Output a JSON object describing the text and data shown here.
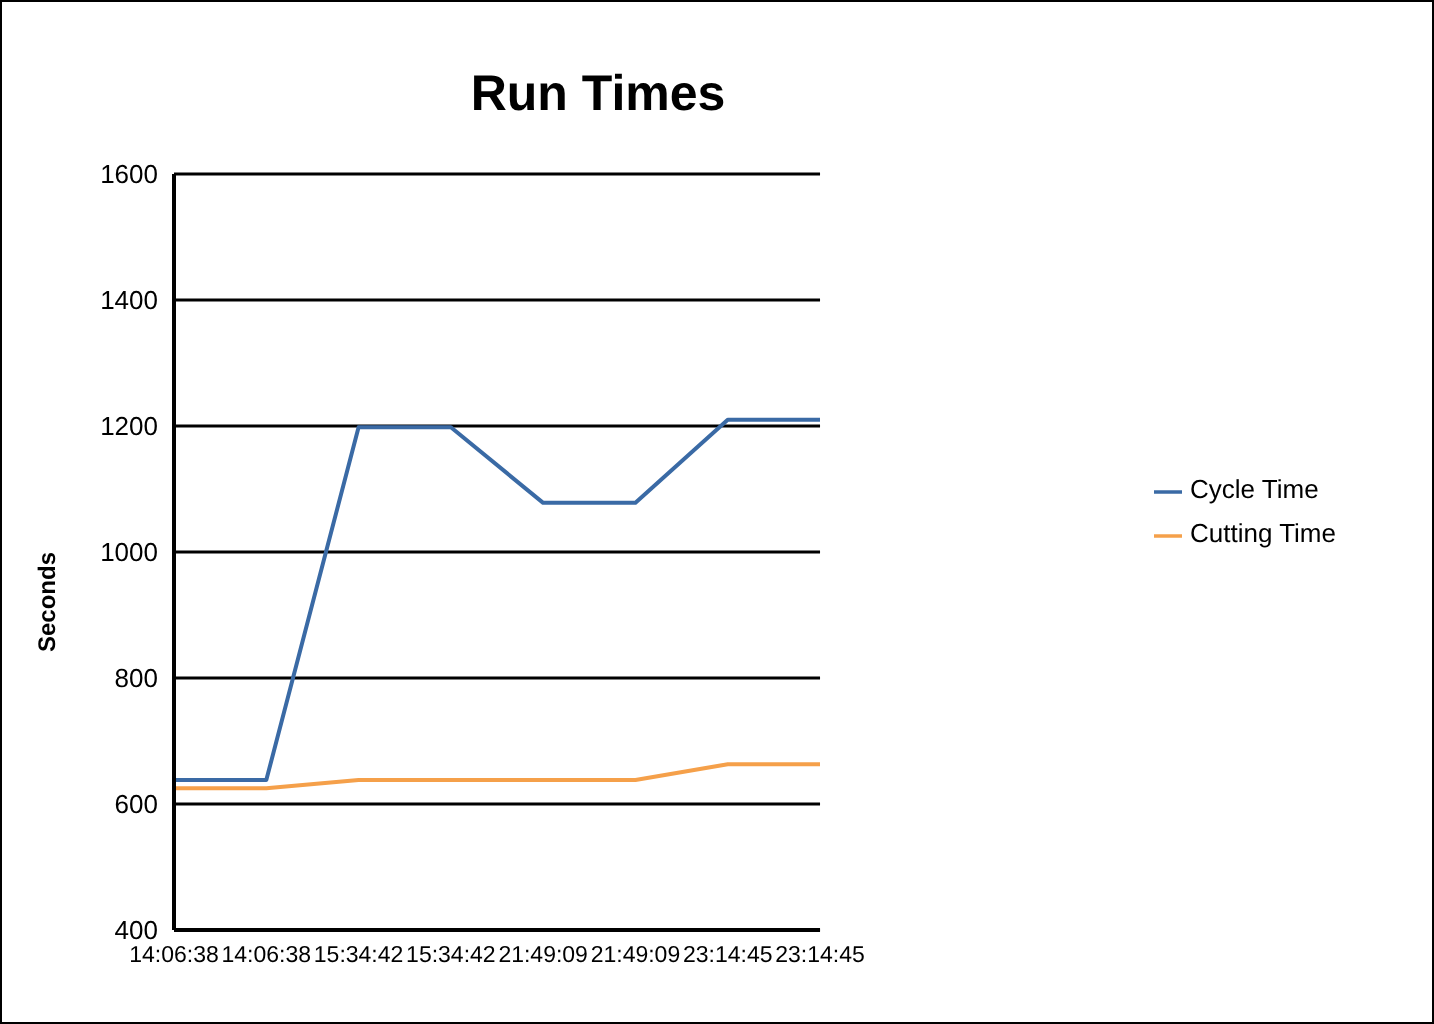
{
  "chart_data": {
    "type": "line",
    "title": "Run Times",
    "ylabel": "Seconds",
    "categories": [
      "14:06:38",
      "14:06:38",
      "15:34:42",
      "15:34:42",
      "21:49:09",
      "21:49:09",
      "23:14:45",
      "23:14:45"
    ],
    "series": [
      {
        "name": "Cycle Time",
        "color": "#3a6aa5",
        "values": [
          638,
          638,
          1198,
          1198,
          1078,
          1078,
          1210,
          1210
        ]
      },
      {
        "name": "Cutting Time",
        "color": "#f5a04a",
        "values": [
          625,
          625,
          638,
          638,
          638,
          638,
          663,
          663
        ]
      }
    ],
    "ylim": [
      400,
      1600
    ],
    "yticks": [
      400,
      600,
      800,
      1000,
      1200,
      1400,
      1600
    ],
    "grid": "y",
    "legend": "right",
    "marker": "none",
    "line_style": "solid"
  }
}
